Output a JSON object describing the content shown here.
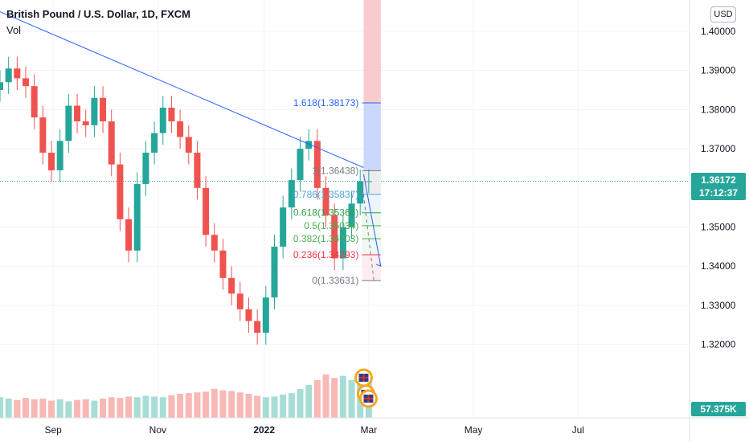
{
  "header": {
    "title": "British Pound / U.S. Dollar, 1D, FXCM",
    "vol_label": "Vol",
    "currency_button": "USD"
  },
  "price_tag": {
    "price": "1.36172",
    "countdown": "17:12:37",
    "color": "#26a69a"
  },
  "volume_tag": {
    "value": "57.375K",
    "color": "#26a69a"
  },
  "colors": {
    "up": "#26a69a",
    "down": "#ef5350",
    "trendline": "#2962ff"
  },
  "chart_data": {
    "type": "candlestick",
    "title": "British Pound / U.S. Dollar, 1D, FXCM",
    "y_ticks": [
      "1.40000",
      "1.39000",
      "1.38000",
      "1.37000",
      "1.35000",
      "1.34000",
      "1.33000",
      "1.32000"
    ],
    "y_tick_values": [
      1.4,
      1.39,
      1.38,
      1.37,
      1.35,
      1.34,
      1.33,
      1.32
    ],
    "ylim": [
      1.307,
      1.408
    ],
    "x_ticks": [
      "Sep",
      "Nov",
      "2022",
      "Mar",
      "May",
      "Jul"
    ],
    "x_tick_days": [
      9,
      70,
      132,
      193,
      254,
      315
    ],
    "xlim": [
      -22,
      380
    ],
    "series": [
      {
        "kind": "close",
        "days": [
          -22,
          -17,
          -12,
          -7,
          -2,
          3,
          8,
          13,
          18,
          23,
          28,
          33,
          38,
          43,
          48,
          53,
          58,
          63,
          68,
          73,
          78,
          83,
          88,
          93,
          98,
          103,
          108,
          113,
          118,
          123,
          128,
          133,
          138,
          143,
          148,
          153,
          158,
          163,
          168,
          173,
          178,
          183,
          188,
          193
        ],
        "values": [
          1.387,
          1.3905,
          1.388,
          1.386,
          1.378,
          1.369,
          1.3645,
          1.372,
          1.381,
          1.377,
          1.376,
          1.383,
          1.377,
          1.366,
          1.352,
          1.344,
          1.361,
          1.369,
          1.374,
          1.3805,
          1.377,
          1.373,
          1.369,
          1.36,
          1.348,
          1.344,
          1.337,
          1.333,
          1.329,
          1.326,
          1.323,
          1.332,
          1.345,
          1.355,
          1.362,
          1.37,
          1.372,
          1.36,
          1.353,
          1.342,
          1.35,
          1.356,
          1.3617,
          1.3617
        ]
      }
    ],
    "volume": {
      "days": [
        -22,
        -17,
        -12,
        -7,
        -2,
        3,
        8,
        13,
        18,
        23,
        28,
        33,
        38,
        43,
        48,
        53,
        58,
        63,
        68,
        73,
        78,
        83,
        88,
        93,
        98,
        103,
        108,
        113,
        118,
        123,
        128,
        133,
        138,
        143,
        148,
        153,
        158,
        163,
        168,
        173,
        178,
        183,
        188,
        193
      ],
      "values": [
        30,
        28,
        26,
        29,
        27,
        28,
        25,
        27,
        24,
        26,
        27,
        25,
        28,
        30,
        29,
        31,
        30,
        32,
        31,
        30,
        33,
        35,
        36,
        37,
        38,
        42,
        40,
        39,
        37,
        35,
        32,
        30,
        31,
        34,
        36,
        42,
        48,
        55,
        63,
        58,
        61,
        55,
        50,
        57.375
      ]
    },
    "fibonacci": [
      {
        "ratio": "1.618",
        "price": 1.38173,
        "label": "1.618(1.38173)",
        "color": "#2962ff"
      },
      {
        "ratio": "1",
        "price": 1.36438,
        "label": "1(1.36438)",
        "color": "#787b86"
      },
      {
        "ratio": "0.786",
        "price": 1.35837,
        "label": "0.786(1.35837)",
        "color": "#4ba3d6"
      },
      {
        "ratio": "0.618",
        "price": 1.35366,
        "label": "0.618(1.35366)",
        "color": "#2e9e4a"
      },
      {
        "ratio": "0.5",
        "price": 1.35034,
        "label": "0.5(1.35034)",
        "color": "#4caf50"
      },
      {
        "ratio": "0.382",
        "price": 1.34703,
        "label": "0.382(1.34703)",
        "color": "#4caf50"
      },
      {
        "ratio": "0.236",
        "price": 1.34293,
        "label": "0.236(1.34293)",
        "color": "#f23645"
      },
      {
        "ratio": "0",
        "price": 1.33631,
        "label": "0(1.33631)",
        "color": "#787b86"
      }
    ]
  }
}
